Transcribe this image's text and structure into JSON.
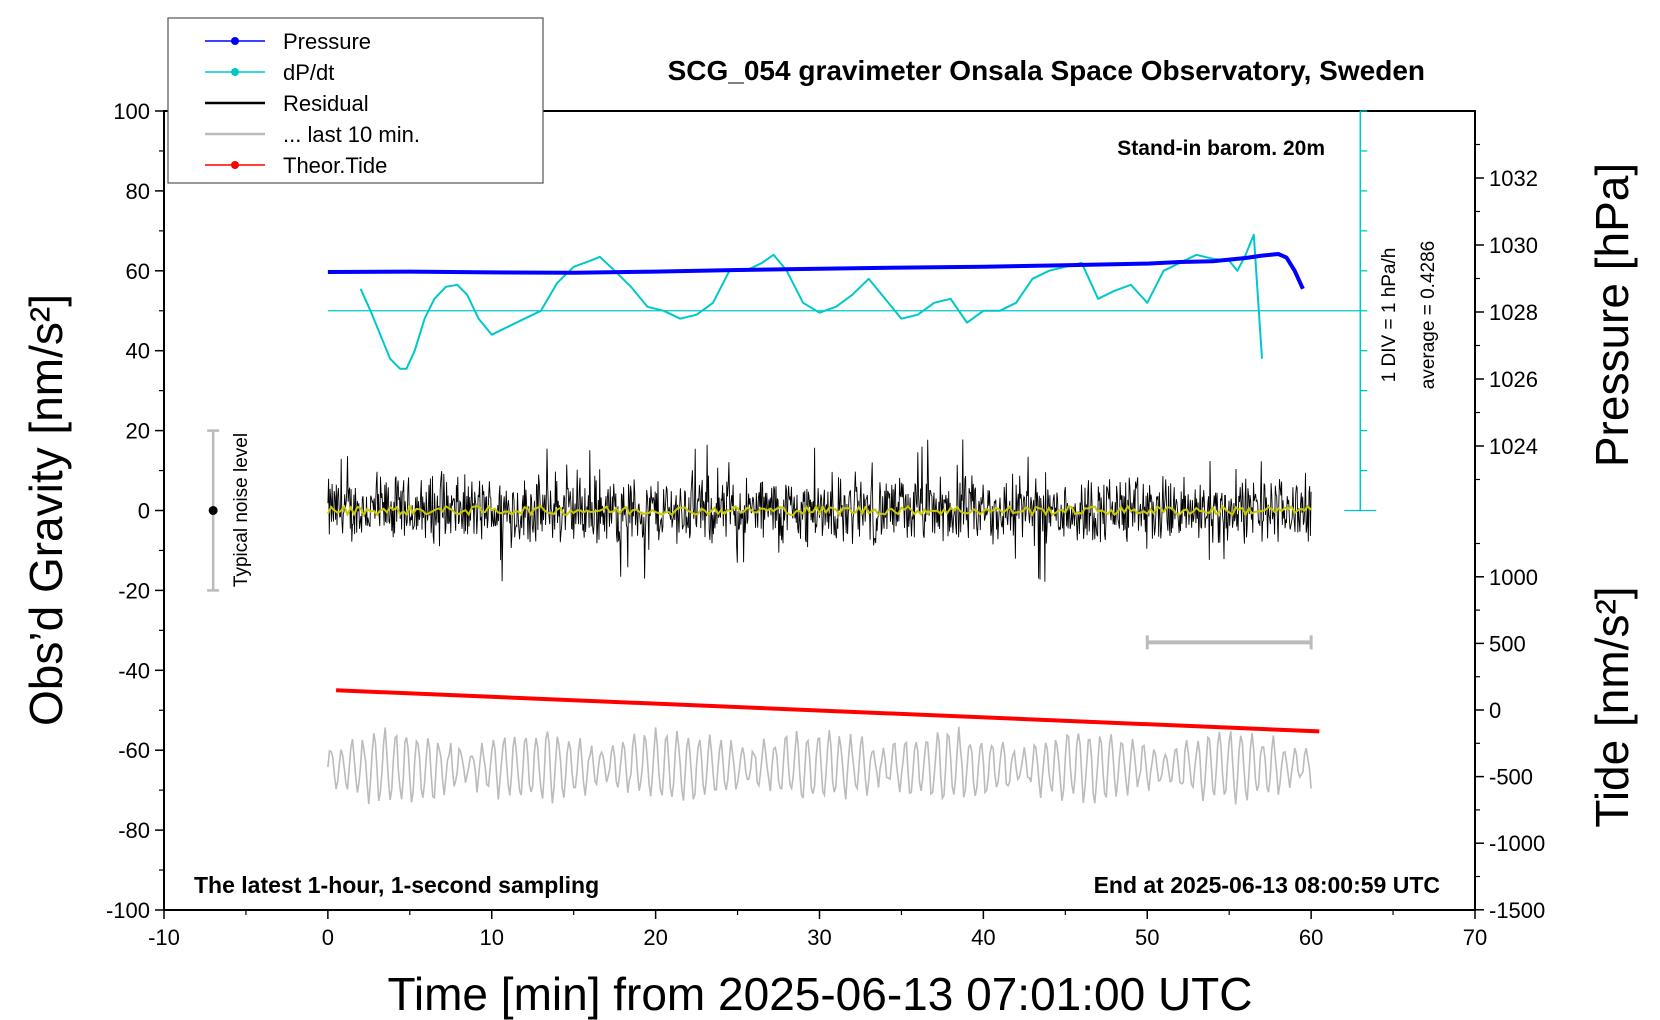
{
  "chart_data": {
    "type": "line",
    "title": "SCG_054 gravimeter Onsala Space Observatory, Sweden",
    "xlabel": "Time [min] from 2025-06-13 07:01:00 UTC",
    "ylabel_left": "Obs’d Gravity [nm/s²]",
    "ylabel_right_top": "Pressure [hPa]",
    "ylabel_right_bottom": "Tide [nm/s²]",
    "xlim": [
      -10,
      70
    ],
    "ylim_left": [
      -100,
      100
    ],
    "x_ticks": [
      "-10",
      "0",
      "10",
      "20",
      "30",
      "40",
      "50",
      "60",
      "70"
    ],
    "y_ticks_left": [
      "100",
      "80",
      "60",
      "40",
      "20",
      "0",
      "-20",
      "-40",
      "-60",
      "-80",
      "-100"
    ],
    "y_ticks_pressure": [
      "1032",
      "1030",
      "1028",
      "1026",
      "1024"
    ],
    "y_ticks_tide": [
      "1000",
      "500",
      "0",
      "-500",
      "-1000",
      "-1500"
    ],
    "annotations": {
      "barometer": "Stand-in barom. 20m",
      "div_label": "1 DIV = 1 hPa/h",
      "average_label": "average = 0.4286",
      "noise_label": "Typical noise level",
      "bottom_left": "The latest 1-hour, 1-second sampling",
      "bottom_right": "End at 2025-06-13 08:00:59 UTC"
    },
    "noise_level": {
      "x": -7,
      "center": 0,
      "range": [
        -20,
        20
      ]
    },
    "last_10_min_bar": {
      "x_range": [
        50,
        60
      ],
      "y": -33
    },
    "dpdt_baseline": 50,
    "legend": [
      {
        "name": "Pressure",
        "color": "#0000ff",
        "marker": true
      },
      {
        "name": "dP/dt",
        "color": "#00c8c8",
        "marker": true
      },
      {
        "name": "Residual",
        "color": "#000000",
        "marker": false
      },
      {
        "name": "... last 10 min.",
        "color": "#bbbbbb",
        "marker": false
      },
      {
        "name": "Theor.Tide",
        "color": "#ff0000",
        "marker": true
      }
    ],
    "series": [
      {
        "name": "Pressure",
        "x": [
          0,
          5,
          10,
          15,
          20,
          25,
          30,
          35,
          40,
          45,
          50,
          52,
          54,
          55,
          56,
          57,
          58,
          58.5,
          59,
          59.5
        ],
        "y": [
          59.7,
          59.8,
          59.6,
          59.5,
          59.8,
          60.2,
          60.5,
          60.8,
          61.0,
          61.4,
          61.8,
          62.2,
          62.4,
          62.8,
          63.2,
          63.8,
          64.2,
          63.3,
          60.0,
          55.5
        ]
      },
      {
        "name": "dP/dt",
        "x": [
          2,
          2.6,
          3.2,
          3.8,
          4.4,
          4.8,
          5.3,
          5.9,
          6.5,
          7.2,
          7.9,
          8.5,
          9.2,
          10,
          11,
          12,
          13,
          14,
          15,
          16,
          16.6,
          17.5,
          18.5,
          19.5,
          20.5,
          21.5,
          22.5,
          23.5,
          24.5,
          25.5,
          26.5,
          27.2,
          28,
          29,
          30,
          31,
          32,
          33,
          34,
          35,
          36,
          37,
          38,
          39,
          40,
          41,
          42,
          43,
          44,
          45,
          46,
          47,
          48,
          49,
          50,
          51,
          52,
          53,
          54,
          55,
          55.5,
          56,
          56.5,
          57
        ],
        "y": [
          55.5,
          50,
          44,
          38,
          35.5,
          35.5,
          40,
          48,
          53,
          56,
          56.5,
          54,
          48,
          44,
          46,
          48,
          50,
          57,
          61,
          62.5,
          63.5,
          60,
          56,
          51,
          50,
          48,
          49,
          52,
          60,
          60,
          62,
          64,
          60,
          52,
          49.5,
          51,
          54,
          58,
          53,
          48,
          49,
          52,
          53,
          47,
          50,
          50,
          52,
          58,
          60,
          61,
          62,
          53,
          55,
          56.5,
          52,
          60,
          62,
          64,
          63,
          62.5,
          60,
          64,
          69,
          38
        ]
      },
      {
        "name": "Residual",
        "x_range": [
          0,
          60
        ],
        "amplitude": 7
      },
      {
        "name": "... last 10 min.",
        "x_range": [
          0,
          60
        ],
        "center": -64,
        "amplitude": 8
      },
      {
        "name": "Theor.Tide",
        "x": [
          0.5,
          60.5
        ],
        "y": [
          -45,
          -55.3
        ]
      },
      {
        "name": "Residual smoothed",
        "x_range": [
          0,
          60
        ],
        "y_center": 0
      }
    ]
  },
  "colors": {
    "pressure": "#0000ff",
    "dpdt": "#00c8c8",
    "residual": "#000000",
    "last10": "#bbbbbb",
    "tide": "#ff0000",
    "smooth": "#c8c800"
  }
}
